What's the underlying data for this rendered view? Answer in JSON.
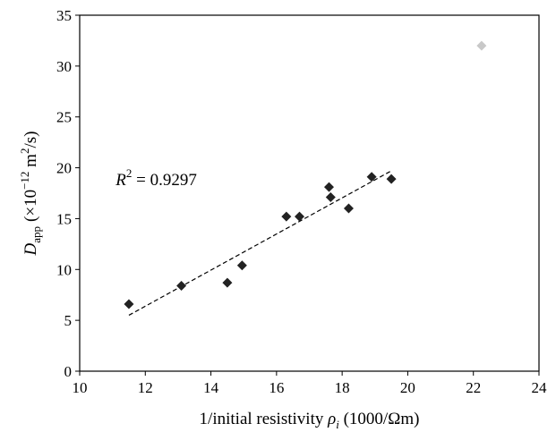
{
  "chart_data": {
    "type": "scatter",
    "title": "",
    "xlabel": {
      "prefix": "1/initial resistivity ",
      "symbol": "ρ",
      "symbol_sub": "i",
      "suffix": " (1000/Ωm)"
    },
    "ylabel": {
      "symbol": "D",
      "symbol_sub": "app",
      "units_a": "(×10",
      "units_exp": "−12",
      "units_b": " m",
      "units_exp2": "2",
      "units_c": "/s)"
    },
    "xlim": [
      10,
      24
    ],
    "ylim": [
      0,
      35
    ],
    "xticks": [
      "10",
      "12",
      "14",
      "16",
      "18",
      "20",
      "22",
      "24"
    ],
    "yticks": [
      "0",
      "5",
      "10",
      "15",
      "20",
      "25",
      "30",
      "35"
    ],
    "grid": false,
    "series": [
      {
        "color": "#222222",
        "marker": "diamond",
        "points": [
          [
            11.5,
            6.6
          ],
          [
            13.1,
            8.4
          ],
          [
            14.5,
            8.7
          ],
          [
            14.95,
            10.4
          ],
          [
            16.3,
            15.2
          ],
          [
            16.7,
            15.2
          ],
          [
            17.6,
            18.1
          ],
          [
            17.65,
            17.1
          ],
          [
            18.2,
            16.0
          ],
          [
            18.9,
            19.1
          ],
          [
            19.5,
            18.9
          ]
        ]
      },
      {
        "color": "#c8c8c8",
        "marker": "diamond",
        "points": [
          [
            22.25,
            32.0
          ]
        ]
      }
    ],
    "trendline": {
      "style": "dashed",
      "color": "#000000",
      "x": [
        11.5,
        19.5
      ],
      "y": [
        5.5,
        19.7
      ]
    },
    "annotation": {
      "symbol": "R",
      "exp": "2",
      "text": " = 0.9297",
      "x": 11.1,
      "y": 18.8
    }
  }
}
